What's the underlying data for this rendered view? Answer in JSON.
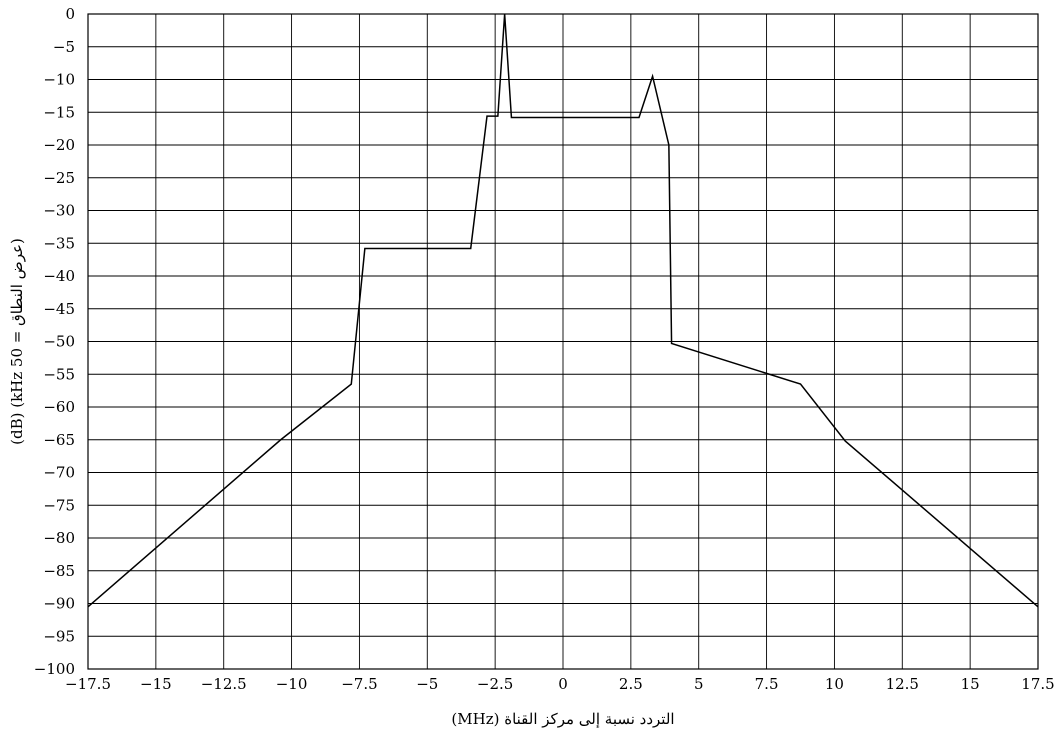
{
  "chart_data": {
    "type": "line",
    "title": "",
    "xlabel": "التردد نسبة إلى مركز القناة (MHz)",
    "ylabel": "(dB) (kHz 50 = عرض النطاق)",
    "xlim": [
      -17.5,
      17.5
    ],
    "ylim": [
      -100,
      0
    ],
    "grid": true,
    "x_ticks": [
      -17.5,
      -15,
      -12.5,
      -10,
      -7.5,
      -5,
      -2.5,
      0,
      2.5,
      5,
      7.5,
      10,
      12.5,
      15,
      17.5
    ],
    "x_tick_labels": [
      "−17.5",
      "−15",
      "−12.5",
      "−10",
      "−7.5",
      "−5",
      "−2.5",
      "0",
      "2.5",
      "5",
      "7.5",
      "10",
      "12.5",
      "15",
      "17.5"
    ],
    "y_ticks": [
      0,
      -5,
      -10,
      -15,
      -20,
      -25,
      -30,
      -35,
      -40,
      -45,
      -50,
      -55,
      -60,
      -65,
      -70,
      -75,
      -80,
      -85,
      -90,
      -95,
      -100
    ],
    "y_tick_labels": [
      "0",
      "−5",
      "−10",
      "−15",
      "−20",
      "−25",
      "−30",
      "−35",
      "−40",
      "−45",
      "−50",
      "−55",
      "−60",
      "−65",
      "−70",
      "−75",
      "−80",
      "−85",
      "−90",
      "−95",
      "−100"
    ],
    "series": [
      {
        "color": "#000000",
        "x": [
          -17.5,
          -10.4,
          -7.8,
          -7.3,
          -3.4,
          -2.8,
          -2.4,
          -2.15,
          -1.9,
          2.8,
          3.3,
          3.9,
          4.0,
          8.75,
          10.4,
          17.5
        ],
        "y": [
          -90.5,
          -65,
          -56.5,
          -35.8,
          -35.8,
          -15.6,
          -15.6,
          0,
          -15.8,
          -15.8,
          -9.5,
          -20,
          -50.3,
          -56.5,
          -65.2,
          -90.5
        ]
      }
    ]
  }
}
